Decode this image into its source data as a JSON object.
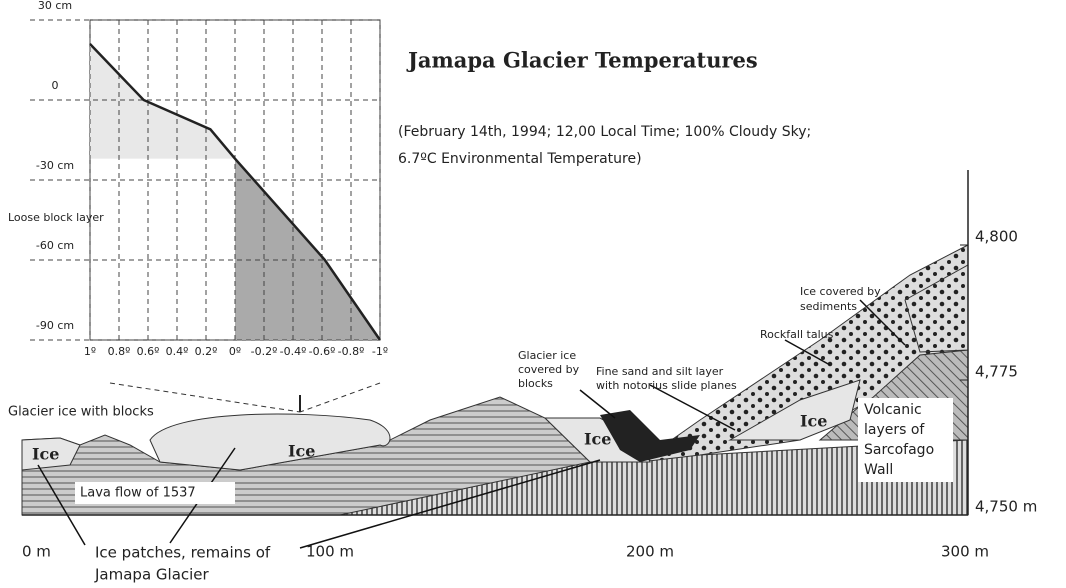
{
  "title": "Jamapa Glacier Temperatures",
  "subtitle": [
    "(February 14th, 1994; 12,00 Local Time; 100% Cloudy Sky;",
    "6.7ºC Environmental Temperature)"
  ],
  "inset": {
    "xlim": [
      1,
      -1
    ],
    "ylim": [
      -90,
      30
    ],
    "xticks": [
      {
        "value": 1,
        "label": "1º"
      },
      {
        "value": 0.8,
        "label": "0.8º"
      },
      {
        "value": 0.6,
        "label": "0.6º"
      },
      {
        "value": 0.4,
        "label": "0.4º"
      },
      {
        "value": 0.2,
        "label": "0.2º"
      },
      {
        "value": 0,
        "label": "0º"
      },
      {
        "value": -0.2,
        "label": "-0.2º"
      },
      {
        "value": -0.4,
        "label": "-0.4º"
      },
      {
        "value": -0.6,
        "label": "-0.6º"
      },
      {
        "value": -0.8,
        "label": "-0.8º"
      },
      {
        "value": -1,
        "label": "-1º"
      }
    ],
    "yticks": [
      {
        "value": 30,
        "label": "30 cm"
      },
      0,
      {
        "value": -30,
        "label": "-30 cm"
      },
      {
        "value": -60,
        "label": "-60 cm"
      },
      {
        "value": -90,
        "label": "-90 cm"
      }
    ],
    "profile": {
      "temperature": [
        1,
        0.63,
        0.17,
        0,
        -0.62,
        -1
      ],
      "depth": [
        21,
        0,
        -11,
        -22,
        -60,
        -90
      ]
    },
    "layer_label": "Loose block layer"
  },
  "profile_axis": {
    "x_labels": [
      "0 m",
      "100 m",
      "200 m",
      "300 m"
    ],
    "elevation_labels": [
      "4,750 m",
      "4,775",
      "4,800"
    ]
  },
  "labels": {
    "glacier_ice_blocks": "Glacier ice with blocks",
    "lava_flow": "Lava flow of 1537",
    "ice_patches": [
      "Ice patches, remains of",
      "Jamapa Glacier"
    ],
    "ice": [
      "Ice",
      "Ice",
      "Ice",
      "Ice"
    ],
    "glacier_ice_covered": [
      "Glacier ice",
      "covered by",
      "blocks"
    ],
    "fine_sand": [
      "Fine sand and silt layer",
      "with notorius slide planes"
    ],
    "rockfall": "Rockfall talus",
    "ice_sediments": [
      "Ice covered by",
      "sediments"
    ],
    "volcanic": [
      "Volcanic",
      "layers of",
      "Sarcofago",
      "Wall"
    ]
  }
}
